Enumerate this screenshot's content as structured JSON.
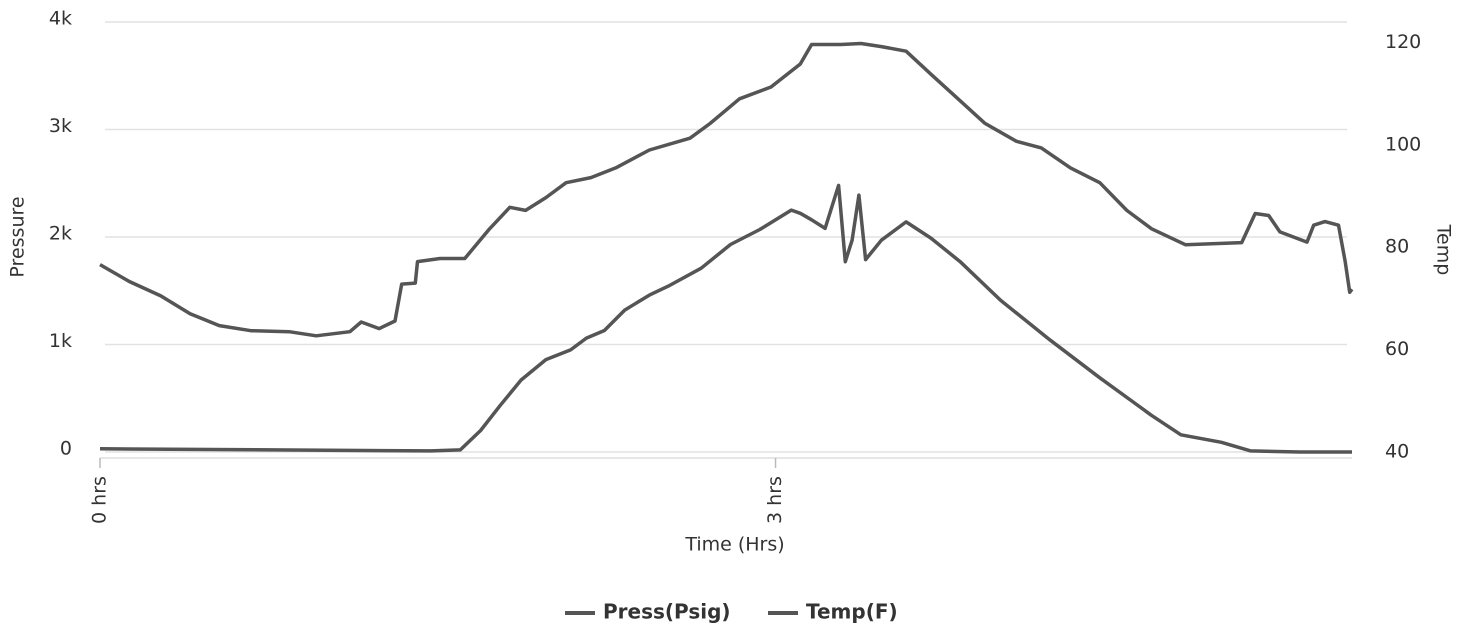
{
  "chart_data": {
    "type": "line",
    "x_label": "Time (Hrs)",
    "y_label": "Pressure",
    "y2_label": "Temp",
    "xlim": [
      0,
      5.56
    ],
    "xticks": [
      {
        "value": 0,
        "label": "0 hrs"
      },
      {
        "value": 3,
        "label": "3 hrs"
      }
    ],
    "ylim": [
      0,
      4000
    ],
    "yticks": [
      0,
      {
        "value": 1000,
        "label": "1k"
      },
      {
        "value": 2000,
        "label": "2k"
      },
      {
        "value": 3000,
        "label": "3k"
      },
      {
        "value": 4000,
        "label": "4k"
      }
    ],
    "y2lim": [
      40,
      124
    ],
    "y2ticks": [
      40,
      60,
      80,
      100,
      120
    ],
    "grid": true,
    "legend": "bottom",
    "series": [
      {
        "name": "Press(Psig)",
        "color": "#555555",
        "axis": "y",
        "x": [
          0,
          1.47,
          1.6,
          1.69,
          1.78,
          1.87,
          1.98,
          2.09,
          2.16,
          2.24,
          2.33,
          2.44,
          2.53,
          2.67,
          2.8,
          2.93,
          3.07,
          3.11,
          3.16,
          3.22,
          3.28,
          3.31,
          3.34,
          3.37,
          3.4,
          3.47,
          3.58,
          3.69,
          3.82,
          4,
          4.22,
          4.44,
          4.67,
          4.8,
          4.98,
          5.11,
          5.33,
          5.56
        ],
        "values": [
          30,
          10,
          20,
          200,
          440,
          670,
          860,
          950,
          1060,
          1130,
          1320,
          1460,
          1550,
          1710,
          1930,
          2070,
          2250,
          2220,
          2160,
          2080,
          2480,
          1770,
          1970,
          2390,
          1790,
          1970,
          2140,
          1990,
          1770,
          1410,
          1040,
          690,
          340,
          160,
          90,
          10,
          0,
          0
        ]
      },
      {
        "name": "Temp(F)",
        "color": "#555555",
        "axis": "y2",
        "x": [
          0,
          0.13,
          0.27,
          0.4,
          0.53,
          0.67,
          0.84,
          0.96,
          1.11,
          1.16,
          1.24,
          1.31,
          1.34,
          1.4,
          1.41,
          1.51,
          1.62,
          1.73,
          1.82,
          1.89,
          1.98,
          2.07,
          2.18,
          2.29,
          2.44,
          2.62,
          2.71,
          2.84,
          2.98,
          3.11,
          3.16,
          3.29,
          3.38,
          3.47,
          3.58,
          3.69,
          3.82,
          3.93,
          4.07,
          4.18,
          4.31,
          4.44,
          4.56,
          4.67,
          4.82,
          5.07,
          5.13,
          5.19,
          5.24,
          5.36,
          5.39,
          5.44,
          5.5,
          5.53,
          5.55,
          5.56
        ],
        "values": [
          76.6,
          73.3,
          70.5,
          67,
          64.7,
          63.7,
          63.5,
          62.7,
          63.5,
          65.4,
          64.1,
          65.6,
          72.8,
          73,
          77.2,
          77.8,
          77.8,
          83.6,
          87.8,
          87.2,
          89.7,
          92.6,
          93.6,
          95.5,
          99,
          101.3,
          104.2,
          109,
          111.3,
          115.8,
          119.6,
          119.6,
          119.8,
          119.2,
          118.3,
          113.8,
          108.6,
          104.2,
          100.7,
          99.4,
          95.5,
          92.6,
          87.2,
          83.6,
          80.5,
          80.9,
          86.6,
          86.2,
          83,
          81,
          84.3,
          85,
          84.3,
          77.2,
          71.2,
          71.8
        ]
      }
    ]
  }
}
